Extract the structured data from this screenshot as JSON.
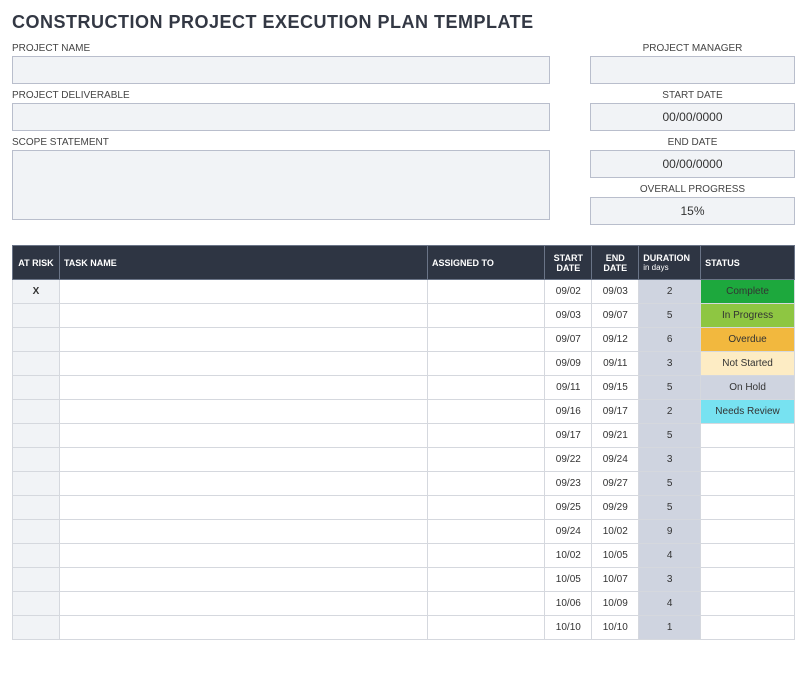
{
  "title": "CONSTRUCTION PROJECT EXECUTION PLAN TEMPLATE",
  "left_fields": {
    "project_name": {
      "label": "PROJECT NAME",
      "value": ""
    },
    "project_deliverable": {
      "label": "PROJECT DELIVERABLE",
      "value": ""
    },
    "scope_statement": {
      "label": "SCOPE STATEMENT",
      "value": ""
    }
  },
  "right_fields": {
    "project_manager": {
      "label": "PROJECT MANAGER",
      "value": ""
    },
    "start_date": {
      "label": "START DATE",
      "value": "00/00/0000"
    },
    "end_date": {
      "label": "END DATE",
      "value": "00/00/0000"
    },
    "overall_progress": {
      "label": "OVERALL PROGRESS",
      "value": "15%"
    }
  },
  "table": {
    "headers": {
      "at_risk": "AT RISK",
      "task_name": "TASK NAME",
      "assigned_to": "ASSIGNED TO",
      "start_date": "START DATE",
      "end_date": "END DATE",
      "duration": "DURATION",
      "duration_sub": "in days",
      "status": "STATUS"
    },
    "status_colors": {
      "Complete": "#1da83d",
      "In Progress": "#8ec642",
      "Overdue": "#f2b83e",
      "Not Started": "#fdecc4",
      "On Hold": "#cfd4e0",
      "Needs Review": "#77e2f1",
      "": "#ffffff"
    },
    "rows": [
      {
        "at_risk": "X",
        "task": "",
        "assigned": "",
        "start": "09/02",
        "end": "09/03",
        "dur": "2",
        "status": "Complete"
      },
      {
        "at_risk": "",
        "task": "",
        "assigned": "",
        "start": "09/03",
        "end": "09/07",
        "dur": "5",
        "status": "In Progress"
      },
      {
        "at_risk": "",
        "task": "",
        "assigned": "",
        "start": "09/07",
        "end": "09/12",
        "dur": "6",
        "status": "Overdue"
      },
      {
        "at_risk": "",
        "task": "",
        "assigned": "",
        "start": "09/09",
        "end": "09/11",
        "dur": "3",
        "status": "Not Started"
      },
      {
        "at_risk": "",
        "task": "",
        "assigned": "",
        "start": "09/11",
        "end": "09/15",
        "dur": "5",
        "status": "On Hold"
      },
      {
        "at_risk": "",
        "task": "",
        "assigned": "",
        "start": "09/16",
        "end": "09/17",
        "dur": "2",
        "status": "Needs Review"
      },
      {
        "at_risk": "",
        "task": "",
        "assigned": "",
        "start": "09/17",
        "end": "09/21",
        "dur": "5",
        "status": ""
      },
      {
        "at_risk": "",
        "task": "",
        "assigned": "",
        "start": "09/22",
        "end": "09/24",
        "dur": "3",
        "status": ""
      },
      {
        "at_risk": "",
        "task": "",
        "assigned": "",
        "start": "09/23",
        "end": "09/27",
        "dur": "5",
        "status": ""
      },
      {
        "at_risk": "",
        "task": "",
        "assigned": "",
        "start": "09/25",
        "end": "09/29",
        "dur": "5",
        "status": ""
      },
      {
        "at_risk": "",
        "task": "",
        "assigned": "",
        "start": "09/24",
        "end": "10/02",
        "dur": "9",
        "status": ""
      },
      {
        "at_risk": "",
        "task": "",
        "assigned": "",
        "start": "10/02",
        "end": "10/05",
        "dur": "4",
        "status": ""
      },
      {
        "at_risk": "",
        "task": "",
        "assigned": "",
        "start": "10/05",
        "end": "10/07",
        "dur": "3",
        "status": ""
      },
      {
        "at_risk": "",
        "task": "",
        "assigned": "",
        "start": "10/06",
        "end": "10/09",
        "dur": "4",
        "status": ""
      },
      {
        "at_risk": "",
        "task": "",
        "assigned": "",
        "start": "10/10",
        "end": "10/10",
        "dur": "1",
        "status": ""
      }
    ]
  }
}
